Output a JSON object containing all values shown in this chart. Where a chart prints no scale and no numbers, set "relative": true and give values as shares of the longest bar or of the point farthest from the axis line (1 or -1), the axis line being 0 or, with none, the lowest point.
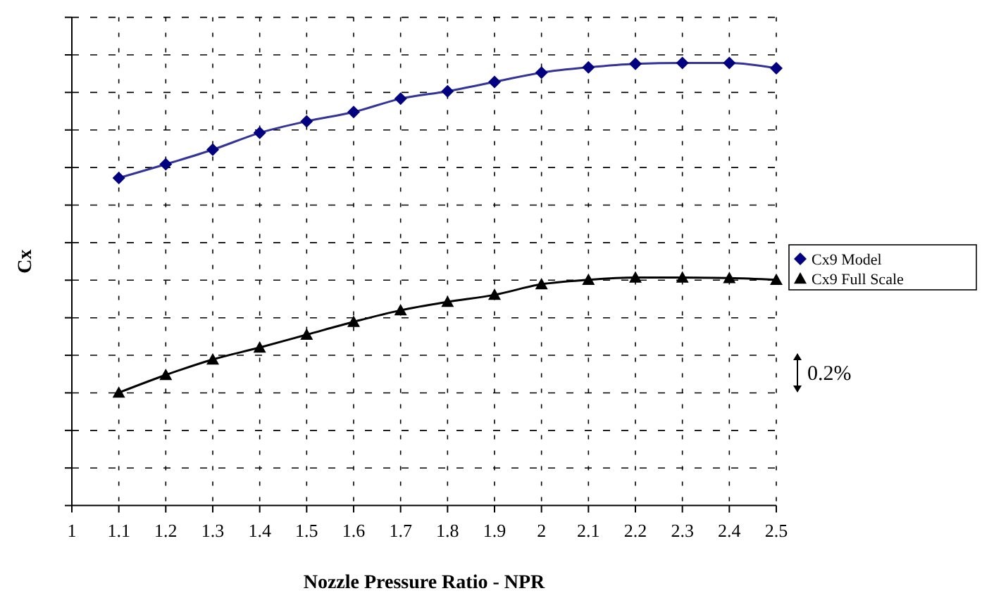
{
  "chart_data": {
    "type": "line",
    "relative": true,
    "xlabel": "Nozzle Pressure Ratio - NPR",
    "ylabel": "Cx",
    "x": [
      1.1,
      1.2,
      1.3,
      1.4,
      1.5,
      1.6,
      1.7,
      1.8,
      1.9,
      2.0,
      2.1,
      2.2,
      2.3,
      2.4,
      2.5
    ],
    "xlim": [
      1,
      2.5
    ],
    "xticks": [
      1,
      1.1,
      1.2,
      1.3,
      1.4,
      1.5,
      1.6,
      1.7,
      1.8,
      1.9,
      2,
      2.1,
      2.2,
      2.3,
      2.4,
      2.5
    ],
    "series": [
      {
        "name": "Cx9 Model",
        "color": "#333399",
        "marker": "diamond",
        "values": [
          0.74,
          0.771,
          0.804,
          0.842,
          0.868,
          0.889,
          0.919,
          0.936,
          0.957,
          0.978,
          0.99,
          0.998,
          1,
          1,
          0.988
        ]
      },
      {
        "name": "Cx9 Full Scale",
        "color": "#000000",
        "marker": "triangle",
        "values": [
          0.255,
          0.295,
          0.33,
          0.357,
          0.386,
          0.415,
          0.441,
          0.46,
          0.476,
          0.5,
          0.51,
          0.515,
          0.515,
          0.514,
          0.51
        ]
      }
    ],
    "grid": true,
    "line_style": "solid",
    "legend": "right",
    "annotations": [
      "0.2%"
    ]
  }
}
